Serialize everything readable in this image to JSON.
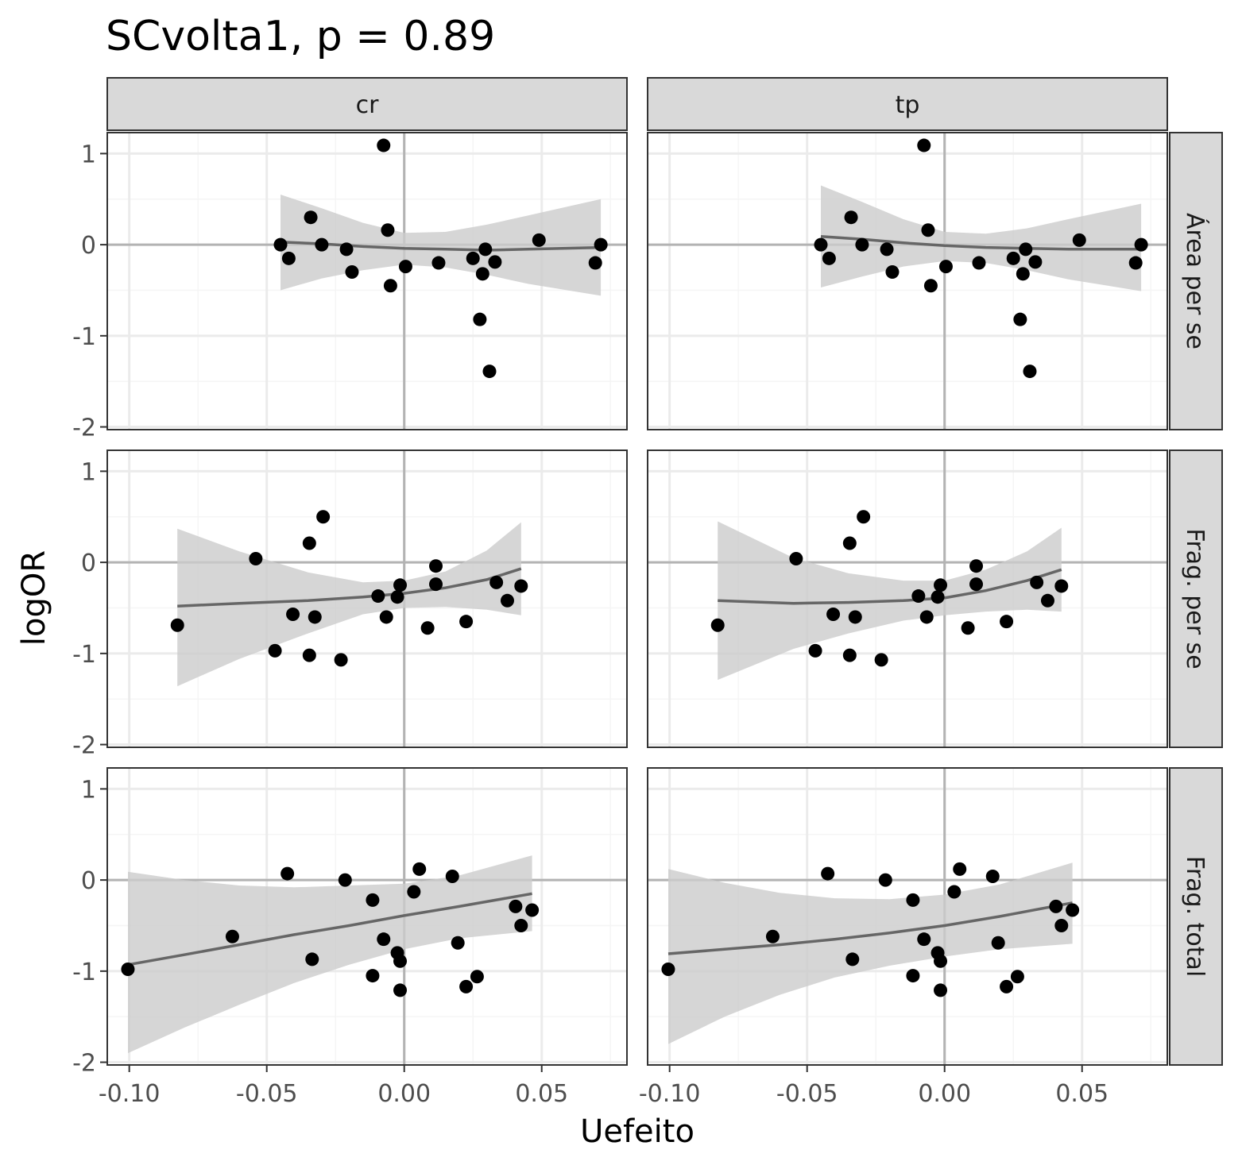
{
  "chart_data": {
    "type": "scatter",
    "title": "SCvolta1, p = 0.89",
    "xlabel": "Uefeito",
    "ylabel": "logOR",
    "xlim": [
      -0.108,
      0.081
    ],
    "ylim": [
      -2.03,
      1.23
    ],
    "x_ticks": [
      -0.1,
      -0.05,
      0.0,
      0.05
    ],
    "x_tick_labels": [
      "-0.10",
      "-0.05",
      "0.00",
      "0.05"
    ],
    "y_ticks": [
      1,
      0,
      -1,
      -2
    ],
    "y_tick_labels": [
      "1",
      "0",
      "-1",
      "-2"
    ],
    "reference_lines": {
      "x": 0,
      "y": 0
    },
    "grid": true,
    "col_facets": [
      "cr",
      "tp"
    ],
    "row_facets": [
      "Área per se",
      "Frag. per se",
      "Frag. total"
    ],
    "panels": [
      {
        "col": "cr",
        "row": "Área per se",
        "points": [
          [
            -0.045,
            0.0
          ],
          [
            -0.042,
            -0.15
          ],
          [
            -0.034,
            0.3
          ],
          [
            -0.03,
            0.0
          ],
          [
            -0.021,
            -0.05
          ],
          [
            -0.019,
            -0.3
          ],
          [
            -0.0075,
            1.09
          ],
          [
            -0.006,
            0.16
          ],
          [
            -0.005,
            -0.45
          ],
          [
            0.0005,
            -0.24
          ],
          [
            0.0125,
            -0.2
          ],
          [
            0.025,
            -0.15
          ],
          [
            0.0275,
            -0.82
          ],
          [
            0.0285,
            -0.32
          ],
          [
            0.0295,
            -0.05
          ],
          [
            0.031,
            -1.39
          ],
          [
            0.033,
            -0.19
          ],
          [
            0.049,
            0.05
          ],
          [
            0.0695,
            -0.2
          ],
          [
            0.0715,
            0.0
          ]
        ],
        "fit": [
          [
            -0.045,
            0.03
          ],
          [
            -0.03,
            0.01
          ],
          [
            -0.015,
            -0.02
          ],
          [
            0.0,
            -0.04
          ],
          [
            0.015,
            -0.05
          ],
          [
            0.03,
            -0.06
          ],
          [
            0.045,
            -0.05
          ],
          [
            0.0715,
            -0.03
          ]
        ],
        "band_upper": [
          [
            -0.045,
            0.55
          ],
          [
            -0.03,
            0.4
          ],
          [
            -0.015,
            0.24
          ],
          [
            0.0,
            0.13
          ],
          [
            0.015,
            0.14
          ],
          [
            0.03,
            0.22
          ],
          [
            0.045,
            0.32
          ],
          [
            0.0715,
            0.5
          ]
        ],
        "band_lower": [
          [
            -0.045,
            -0.5
          ],
          [
            -0.03,
            -0.37
          ],
          [
            -0.015,
            -0.28
          ],
          [
            0.0,
            -0.22
          ],
          [
            0.015,
            -0.25
          ],
          [
            0.03,
            -0.33
          ],
          [
            0.045,
            -0.43
          ],
          [
            0.0715,
            -0.56
          ]
        ]
      },
      {
        "col": "tp",
        "row": "Área per se",
        "points": [
          [
            -0.045,
            0.0
          ],
          [
            -0.042,
            -0.15
          ],
          [
            -0.034,
            0.3
          ],
          [
            -0.03,
            0.0
          ],
          [
            -0.021,
            -0.05
          ],
          [
            -0.019,
            -0.3
          ],
          [
            -0.0075,
            1.09
          ],
          [
            -0.006,
            0.16
          ],
          [
            -0.005,
            -0.45
          ],
          [
            0.0005,
            -0.24
          ],
          [
            0.0125,
            -0.2
          ],
          [
            0.025,
            -0.15
          ],
          [
            0.0275,
            -0.82
          ],
          [
            0.0285,
            -0.32
          ],
          [
            0.0295,
            -0.05
          ],
          [
            0.031,
            -1.39
          ],
          [
            0.033,
            -0.19
          ],
          [
            0.049,
            0.05
          ],
          [
            0.0695,
            -0.2
          ],
          [
            0.0715,
            0.0
          ]
        ],
        "fit": [
          [
            -0.045,
            0.09
          ],
          [
            -0.03,
            0.06
          ],
          [
            -0.015,
            0.02
          ],
          [
            0.0,
            -0.01
          ],
          [
            0.015,
            -0.03
          ],
          [
            0.03,
            -0.04
          ],
          [
            0.045,
            -0.05
          ],
          [
            0.0715,
            -0.05
          ]
        ],
        "band_upper": [
          [
            -0.045,
            0.65
          ],
          [
            -0.03,
            0.47
          ],
          [
            -0.015,
            0.28
          ],
          [
            0.0,
            0.14
          ],
          [
            0.015,
            0.12
          ],
          [
            0.03,
            0.18
          ],
          [
            0.045,
            0.28
          ],
          [
            0.0715,
            0.45
          ]
        ],
        "band_lower": [
          [
            -0.045,
            -0.47
          ],
          [
            -0.03,
            -0.35
          ],
          [
            -0.015,
            -0.24
          ],
          [
            0.0,
            -0.18
          ],
          [
            0.015,
            -0.2
          ],
          [
            0.03,
            -0.28
          ],
          [
            0.045,
            -0.38
          ],
          [
            0.0715,
            -0.51
          ]
        ]
      },
      {
        "col": "cr",
        "row": "Frag. per se",
        "points": [
          [
            -0.0825,
            -0.69
          ],
          [
            -0.054,
            0.04
          ],
          [
            -0.047,
            -0.97
          ],
          [
            -0.0405,
            -0.57
          ],
          [
            -0.0345,
            0.21
          ],
          [
            -0.0345,
            -1.02
          ],
          [
            -0.0325,
            -0.6
          ],
          [
            -0.0295,
            0.5
          ],
          [
            -0.023,
            -1.07
          ],
          [
            -0.0095,
            -0.37
          ],
          [
            -0.0065,
            -0.6
          ],
          [
            -0.0025,
            -0.38
          ],
          [
            -0.0015,
            -0.25
          ],
          [
            0.0085,
            -0.72
          ],
          [
            0.0115,
            -0.04
          ],
          [
            0.0115,
            -0.24
          ],
          [
            0.0225,
            -0.65
          ],
          [
            0.0335,
            -0.22
          ],
          [
            0.0375,
            -0.42
          ],
          [
            0.0425,
            -0.26
          ]
        ],
        "fit": [
          [
            -0.0825,
            -0.48
          ],
          [
            -0.06,
            -0.45
          ],
          [
            -0.035,
            -0.42
          ],
          [
            -0.015,
            -0.38
          ],
          [
            0.0,
            -0.34
          ],
          [
            0.015,
            -0.28
          ],
          [
            0.03,
            -0.19
          ],
          [
            0.0425,
            -0.07
          ]
        ],
        "band_upper": [
          [
            -0.0825,
            0.37
          ],
          [
            -0.06,
            0.12
          ],
          [
            -0.035,
            -0.11
          ],
          [
            -0.015,
            -0.22
          ],
          [
            0.0,
            -0.2
          ],
          [
            0.015,
            -0.1
          ],
          [
            0.03,
            0.13
          ],
          [
            0.0425,
            0.44
          ]
        ],
        "band_lower": [
          [
            -0.0825,
            -1.36
          ],
          [
            -0.06,
            -1.06
          ],
          [
            -0.035,
            -0.78
          ],
          [
            -0.015,
            -0.57
          ],
          [
            0.0,
            -0.5
          ],
          [
            0.015,
            -0.49
          ],
          [
            0.03,
            -0.52
          ],
          [
            0.0425,
            -0.58
          ]
        ]
      },
      {
        "col": "tp",
        "row": "Frag. per se",
        "points": [
          [
            -0.0825,
            -0.69
          ],
          [
            -0.054,
            0.04
          ],
          [
            -0.047,
            -0.97
          ],
          [
            -0.0405,
            -0.57
          ],
          [
            -0.0345,
            0.21
          ],
          [
            -0.0345,
            -1.02
          ],
          [
            -0.0325,
            -0.6
          ],
          [
            -0.0295,
            0.5
          ],
          [
            -0.023,
            -1.07
          ],
          [
            -0.0095,
            -0.37
          ],
          [
            -0.0065,
            -0.6
          ],
          [
            -0.0025,
            -0.38
          ],
          [
            -0.0015,
            -0.25
          ],
          [
            0.0085,
            -0.72
          ],
          [
            0.0115,
            -0.04
          ],
          [
            0.0115,
            -0.24
          ],
          [
            0.0225,
            -0.65
          ],
          [
            0.0335,
            -0.22
          ],
          [
            0.0375,
            -0.42
          ],
          [
            0.0425,
            -0.26
          ]
        ],
        "fit": [
          [
            -0.0825,
            -0.42
          ],
          [
            -0.055,
            -0.45
          ],
          [
            -0.035,
            -0.44
          ],
          [
            -0.015,
            -0.42
          ],
          [
            0.0,
            -0.39
          ],
          [
            0.015,
            -0.31
          ],
          [
            0.03,
            -0.2
          ],
          [
            0.0425,
            -0.08
          ]
        ],
        "band_upper": [
          [
            -0.0825,
            0.45
          ],
          [
            -0.055,
            0.05
          ],
          [
            -0.035,
            -0.12
          ],
          [
            -0.015,
            -0.2
          ],
          [
            0.0,
            -0.2
          ],
          [
            0.015,
            -0.08
          ],
          [
            0.03,
            0.12
          ],
          [
            0.0425,
            0.38
          ]
        ],
        "band_lower": [
          [
            -0.0825,
            -1.29
          ],
          [
            -0.055,
            -0.95
          ],
          [
            -0.035,
            -0.78
          ],
          [
            -0.015,
            -0.64
          ],
          [
            0.0,
            -0.58
          ],
          [
            0.015,
            -0.54
          ],
          [
            0.03,
            -0.52
          ],
          [
            0.0425,
            -0.54
          ]
        ]
      },
      {
        "col": "cr",
        "row": "Frag. total",
        "points": [
          [
            -0.1005,
            -0.98
          ],
          [
            -0.0625,
            -0.62
          ],
          [
            -0.0425,
            0.07
          ],
          [
            -0.0335,
            -0.87
          ],
          [
            -0.0215,
            0.0
          ],
          [
            -0.0115,
            -0.22
          ],
          [
            -0.0115,
            -1.05
          ],
          [
            -0.0075,
            -0.65
          ],
          [
            -0.0025,
            -0.8
          ],
          [
            -0.0015,
            -0.89
          ],
          [
            -0.0015,
            -1.21
          ],
          [
            0.0035,
            -0.13
          ],
          [
            0.0055,
            0.12
          ],
          [
            0.0175,
            0.04
          ],
          [
            0.0195,
            -0.69
          ],
          [
            0.0225,
            -1.17
          ],
          [
            0.0265,
            -1.06
          ],
          [
            0.0405,
            -0.29
          ],
          [
            0.0425,
            -0.5
          ],
          [
            0.0465,
            -0.33
          ]
        ],
        "fit": [
          [
            -0.1005,
            -0.93
          ],
          [
            -0.08,
            -0.82
          ],
          [
            -0.06,
            -0.71
          ],
          [
            -0.04,
            -0.6
          ],
          [
            -0.02,
            -0.5
          ],
          [
            0.0,
            -0.39
          ],
          [
            0.02,
            -0.29
          ],
          [
            0.0465,
            -0.15
          ]
        ],
        "band_upper": [
          [
            -0.1005,
            0.09
          ],
          [
            -0.08,
            0.0
          ],
          [
            -0.06,
            -0.06
          ],
          [
            -0.04,
            -0.08
          ],
          [
            -0.02,
            -0.06
          ],
          [
            0.0,
            -0.04
          ],
          [
            0.02,
            0.05
          ],
          [
            0.0465,
            0.27
          ]
        ],
        "band_lower": [
          [
            -0.1005,
            -1.9
          ],
          [
            -0.08,
            -1.62
          ],
          [
            -0.06,
            -1.37
          ],
          [
            -0.04,
            -1.13
          ],
          [
            -0.02,
            -0.93
          ],
          [
            0.0,
            -0.76
          ],
          [
            0.02,
            -0.64
          ],
          [
            0.0465,
            -0.56
          ]
        ]
      },
      {
        "col": "tp",
        "row": "Frag. total",
        "points": [
          [
            -0.1005,
            -0.98
          ],
          [
            -0.0625,
            -0.62
          ],
          [
            -0.0425,
            0.07
          ],
          [
            -0.0335,
            -0.87
          ],
          [
            -0.0215,
            0.0
          ],
          [
            -0.0115,
            -0.22
          ],
          [
            -0.0115,
            -1.05
          ],
          [
            -0.0075,
            -0.65
          ],
          [
            -0.0025,
            -0.8
          ],
          [
            -0.0015,
            -0.89
          ],
          [
            -0.0015,
            -1.21
          ],
          [
            0.0035,
            -0.13
          ],
          [
            0.0055,
            0.12
          ],
          [
            0.0175,
            0.04
          ],
          [
            0.0195,
            -0.69
          ],
          [
            0.0225,
            -1.17
          ],
          [
            0.0265,
            -1.06
          ],
          [
            0.0405,
            -0.29
          ],
          [
            0.0425,
            -0.5
          ],
          [
            0.0465,
            -0.33
          ]
        ],
        "fit": [
          [
            -0.1005,
            -0.81
          ],
          [
            -0.08,
            -0.76
          ],
          [
            -0.06,
            -0.71
          ],
          [
            -0.04,
            -0.65
          ],
          [
            -0.02,
            -0.58
          ],
          [
            0.0,
            -0.5
          ],
          [
            0.02,
            -0.4
          ],
          [
            0.0465,
            -0.25
          ]
        ],
        "band_upper": [
          [
            -0.1005,
            0.12
          ],
          [
            -0.08,
            -0.03
          ],
          [
            -0.06,
            -0.14
          ],
          [
            -0.04,
            -0.2
          ],
          [
            -0.02,
            -0.21
          ],
          [
            0.0,
            -0.16
          ],
          [
            0.02,
            -0.05
          ],
          [
            0.0465,
            0.19
          ]
        ],
        "band_lower": [
          [
            -0.1005,
            -1.8
          ],
          [
            -0.08,
            -1.5
          ],
          [
            -0.06,
            -1.26
          ],
          [
            -0.04,
            -1.07
          ],
          [
            -0.02,
            -0.94
          ],
          [
            0.0,
            -0.84
          ],
          [
            0.02,
            -0.76
          ],
          [
            0.0465,
            -0.7
          ]
        ]
      }
    ],
    "colors": {
      "point": "#000000",
      "fit_line": "#666666",
      "band": "#cccccc",
      "reference_line": "#b3b3b3",
      "grid_major": "#ebebeb",
      "grid_minor": "#f5f5f5",
      "panel_border": "#333333",
      "strip_fill": "#d9d9d9"
    }
  }
}
